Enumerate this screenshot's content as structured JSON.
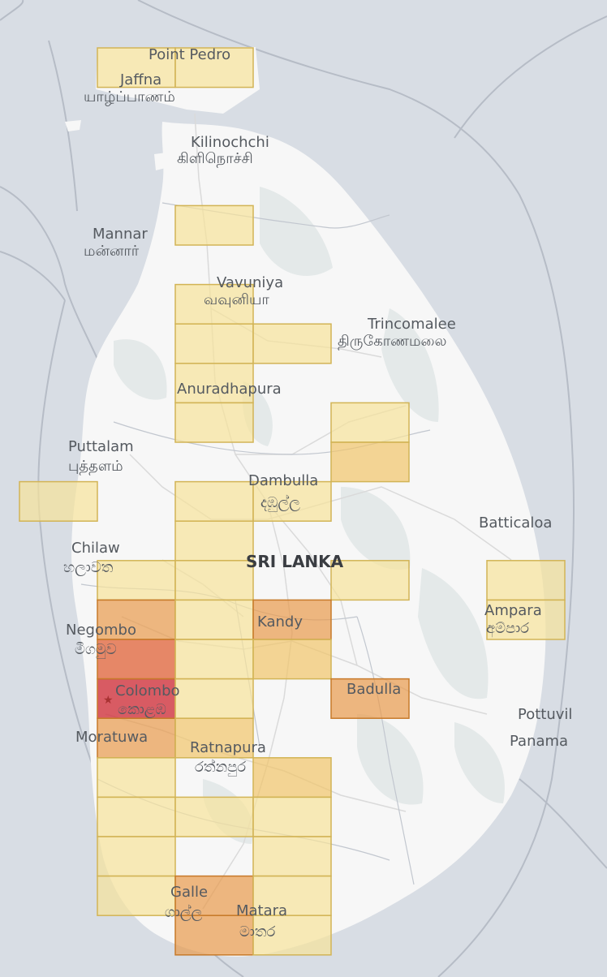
{
  "map": {
    "country_label": "SRI LANKA",
    "colors": {
      "water": "#d8dde4",
      "land": "#f7f7f7",
      "forest": "#e6eaea",
      "boundary": "#b6bcc6",
      "road": "#dcdcdc",
      "capital_marker": "#a83232"
    },
    "places": [
      {
        "id": "point-pedro",
        "name": "Point Pedro",
        "local": ""
      },
      {
        "id": "jaffna",
        "name": "Jaffna",
        "local": "யாழ்ப்பாணம்"
      },
      {
        "id": "kilinochchi",
        "name": "Kilinochchi",
        "local": "கிளிநொச்சி"
      },
      {
        "id": "mannar",
        "name": "Mannar",
        "local": "மன்னார்"
      },
      {
        "id": "vavuniya",
        "name": "Vavuniya",
        "local": "வவுனியா"
      },
      {
        "id": "trincomalee",
        "name": "Trincomalee",
        "local": "திருகோணமலை"
      },
      {
        "id": "anuradhapura",
        "name": "Anuradhapura",
        "local": ""
      },
      {
        "id": "puttalam",
        "name": "Puttalam",
        "local": "புத்தளம்"
      },
      {
        "id": "dambulla",
        "name": "Dambulla",
        "local": "දඹුල්ල"
      },
      {
        "id": "batticaloa",
        "name": "Batticaloa",
        "local": ""
      },
      {
        "id": "chilaw",
        "name": "Chilaw",
        "local": "හලාවත"
      },
      {
        "id": "kandy",
        "name": "Kandy",
        "local": ""
      },
      {
        "id": "ampara",
        "name": "Ampara",
        "local": "අම්පාර"
      },
      {
        "id": "negombo",
        "name": "Negombo",
        "local": "මීගමුව"
      },
      {
        "id": "colombo",
        "name": "Colombo",
        "local": "කොළඹ"
      },
      {
        "id": "badulla",
        "name": "Badulla",
        "local": ""
      },
      {
        "id": "pottuvil",
        "name": "Pottuvil",
        "local": ""
      },
      {
        "id": "panama",
        "name": "Panama",
        "local": ""
      },
      {
        "id": "moratuwa",
        "name": "Moratuwa",
        "local": ""
      },
      {
        "id": "ratnapura",
        "name": "Ratnapura",
        "local": "රත්නපුර"
      },
      {
        "id": "galle",
        "name": "Galle",
        "local": "ගාල්ල"
      },
      {
        "id": "matara",
        "name": "Matara",
        "local": "මාතර"
      }
    ],
    "grid_cells": [
      {
        "col": 1,
        "row": 0,
        "level": 1
      },
      {
        "col": 2,
        "row": 0,
        "level": 1
      },
      {
        "col": 2,
        "row": 4,
        "level": 1
      },
      {
        "col": 2,
        "row": 6,
        "level": 1
      },
      {
        "col": 2,
        "row": 7,
        "level": 1
      },
      {
        "col": 3,
        "row": 7,
        "level": 1
      },
      {
        "col": 2,
        "row": 8,
        "level": 1
      },
      {
        "col": 2,
        "row": 9,
        "level": 1
      },
      {
        "col": 4,
        "row": 9,
        "level": 1
      },
      {
        "col": 4,
        "row": 10,
        "level": 2
      },
      {
        "col": 0,
        "row": 11,
        "level": 1
      },
      {
        "col": 2,
        "row": 11,
        "level": 1
      },
      {
        "col": 3,
        "row": 11,
        "level": 1
      },
      {
        "col": 2,
        "row": 12,
        "level": 1
      },
      {
        "col": 1,
        "row": 13,
        "level": 1
      },
      {
        "col": 2,
        "row": 13,
        "level": 1
      },
      {
        "col": 4,
        "row": 13,
        "level": 1
      },
      {
        "col": 6,
        "row": 13,
        "level": 1
      },
      {
        "col": 1,
        "row": 14,
        "level": 3
      },
      {
        "col": 2,
        "row": 14,
        "level": 1
      },
      {
        "col": 3,
        "row": 14,
        "level": 3
      },
      {
        "col": 6,
        "row": 14,
        "level": 1
      },
      {
        "col": 1,
        "row": 15,
        "level": 4
      },
      {
        "col": 2,
        "row": 15,
        "level": 1
      },
      {
        "col": 3,
        "row": 15,
        "level": 2
      },
      {
        "col": 1,
        "row": 16,
        "level": 5
      },
      {
        "col": 2,
        "row": 16,
        "level": 1
      },
      {
        "col": 4,
        "row": 16,
        "level": 3
      },
      {
        "col": 1,
        "row": 17,
        "level": 3
      },
      {
        "col": 2,
        "row": 17,
        "level": 2
      },
      {
        "col": 1,
        "row": 18,
        "level": 1
      },
      {
        "col": 3,
        "row": 18,
        "level": 2
      },
      {
        "col": 1,
        "row": 19,
        "level": 1
      },
      {
        "col": 2,
        "row": 19,
        "level": 1
      },
      {
        "col": 3,
        "row": 19,
        "level": 1
      },
      {
        "col": 1,
        "row": 20,
        "level": 1
      },
      {
        "col": 3,
        "row": 20,
        "level": 1
      },
      {
        "col": 1,
        "row": 21,
        "level": 1
      },
      {
        "col": 2,
        "row": 21,
        "level": 3
      },
      {
        "col": 3,
        "row": 21,
        "level": 1
      },
      {
        "col": 2,
        "row": 22,
        "level": 3
      },
      {
        "col": 3,
        "row": 22,
        "level": 1
      }
    ],
    "level_colors": {
      "1": "#f6e39a",
      "2": "#f1c56a",
      "3": "#e89a4c",
      "4": "#e2683f",
      "5": "#cf2f3a"
    }
  }
}
